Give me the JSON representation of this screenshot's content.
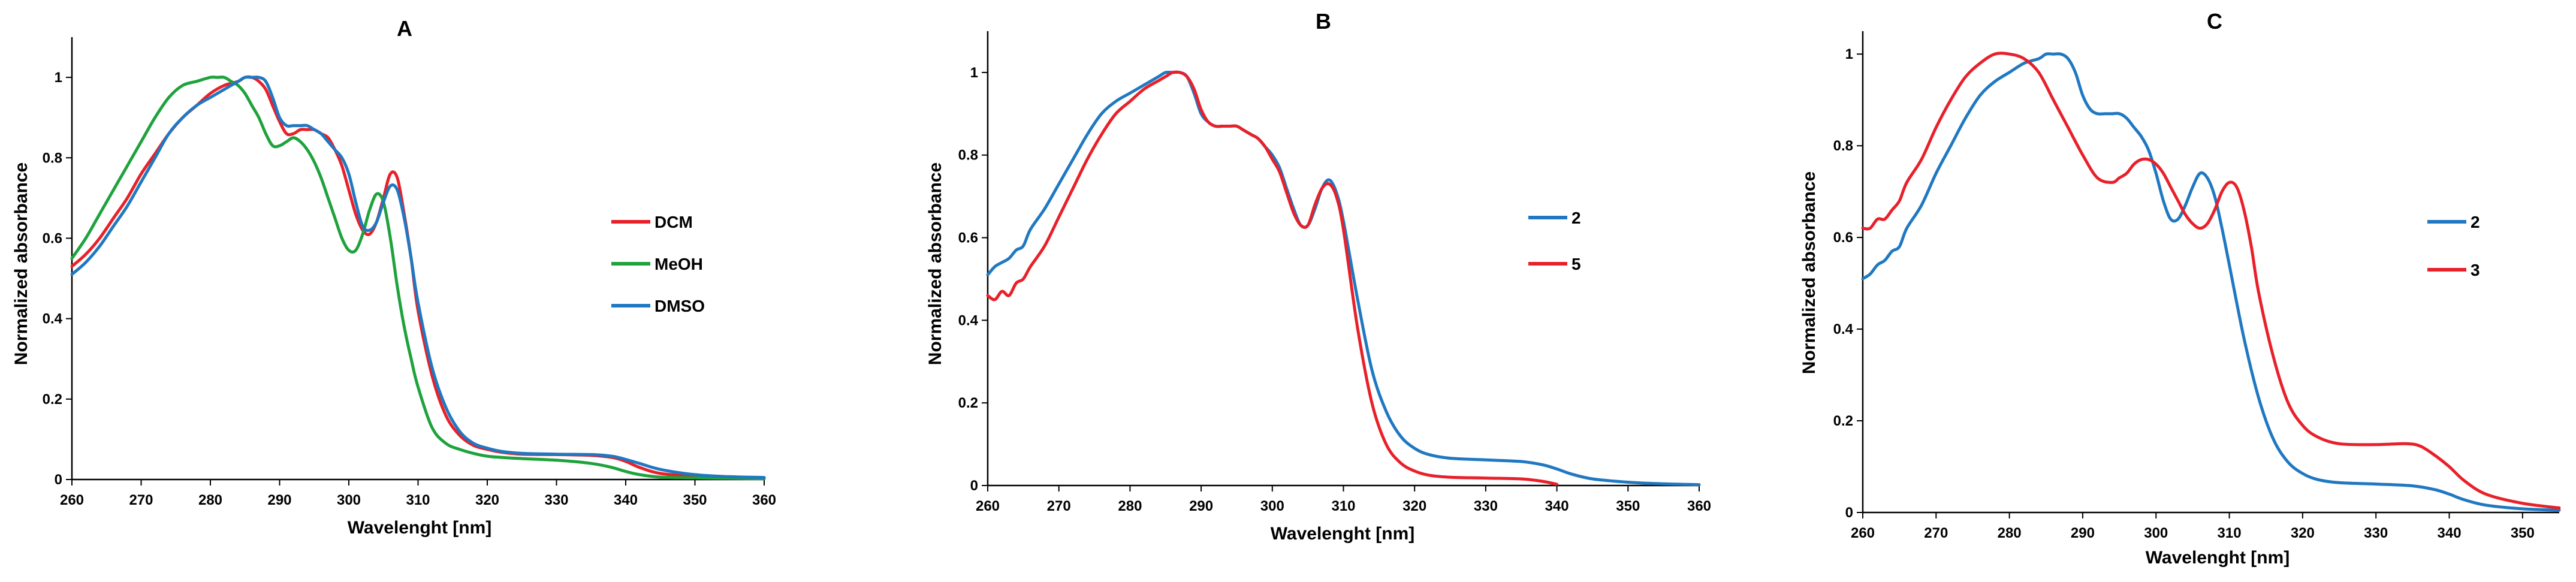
{
  "chart_data": [
    {
      "type": "line",
      "title": "A",
      "xlabel": "Wavelenght [nm]",
      "ylabel": "Normalized absorbance",
      "xlim": [
        260,
        360
      ],
      "ylim": [
        0,
        1.1
      ],
      "xticks": [
        260,
        270,
        280,
        290,
        300,
        310,
        320,
        330,
        340,
        350,
        360
      ],
      "yticks": [
        0,
        0.2,
        0.4,
        0.6,
        0.8,
        1
      ],
      "ytick_labels": [
        "0",
        "0.2",
        "0.4",
        "0.6",
        "0.8",
        "1"
      ],
      "grid": false,
      "legend_position": "right",
      "series": [
        {
          "name": "DCM",
          "color": "#e8202a",
          "x": [
            260,
            262,
            264,
            266,
            268,
            270,
            272,
            274,
            276,
            278,
            280,
            282,
            284,
            285,
            286,
            287,
            288,
            289,
            290,
            291,
            292,
            293,
            294,
            295,
            296,
            297,
            298,
            299,
            300,
            301,
            302,
            303,
            304,
            305,
            306,
            307,
            308,
            309,
            310,
            312,
            314,
            316,
            318,
            320,
            322,
            325,
            330,
            335,
            338,
            340,
            342,
            345,
            350,
            355,
            360
          ],
          "y": [
            0.53,
            0.56,
            0.6,
            0.65,
            0.7,
            0.76,
            0.81,
            0.86,
            0.9,
            0.93,
            0.96,
            0.98,
            0.99,
            1.0,
            1.0,
            0.99,
            0.97,
            0.93,
            0.89,
            0.86,
            0.86,
            0.87,
            0.87,
            0.87,
            0.86,
            0.85,
            0.82,
            0.78,
            0.72,
            0.66,
            0.62,
            0.61,
            0.64,
            0.7,
            0.76,
            0.75,
            0.66,
            0.55,
            0.42,
            0.26,
            0.16,
            0.11,
            0.085,
            0.075,
            0.068,
            0.063,
            0.062,
            0.06,
            0.055,
            0.045,
            0.03,
            0.015,
            0.008,
            0.005,
            0.004
          ]
        },
        {
          "name": "MeOH",
          "color": "#1ea23c",
          "x": [
            260,
            262,
            264,
            266,
            268,
            270,
            272,
            274,
            276,
            278,
            280,
            281,
            282,
            283,
            284,
            285,
            286,
            287,
            288,
            289,
            290,
            291,
            292,
            293,
            294,
            295,
            296,
            297,
            298,
            299,
            300,
            301,
            302,
            303,
            304,
            305,
            306,
            307,
            308,
            309,
            310,
            312,
            314,
            316,
            318,
            320,
            322,
            325,
            330,
            335,
            338,
            340,
            342,
            345,
            350,
            355,
            360
          ],
          "y": [
            0.55,
            0.6,
            0.66,
            0.72,
            0.78,
            0.84,
            0.9,
            0.95,
            0.98,
            0.99,
            1.0,
            1.0,
            1.0,
            0.99,
            0.98,
            0.96,
            0.93,
            0.9,
            0.86,
            0.83,
            0.83,
            0.84,
            0.85,
            0.84,
            0.82,
            0.79,
            0.75,
            0.7,
            0.65,
            0.6,
            0.57,
            0.57,
            0.61,
            0.67,
            0.71,
            0.69,
            0.6,
            0.48,
            0.38,
            0.3,
            0.23,
            0.13,
            0.09,
            0.075,
            0.065,
            0.058,
            0.055,
            0.052,
            0.048,
            0.04,
            0.03,
            0.02,
            0.012,
            0.006,
            0.004,
            0.003,
            0.002
          ]
        },
        {
          "name": "DMSO",
          "color": "#1f78c1",
          "x": [
            260,
            262,
            264,
            266,
            268,
            270,
            272,
            274,
            276,
            278,
            280,
            282,
            284,
            285,
            286,
            287,
            288,
            289,
            290,
            291,
            292,
            293,
            294,
            295,
            296,
            297,
            298,
            299,
            300,
            301,
            302,
            303,
            304,
            305,
            306,
            307,
            308,
            309,
            310,
            312,
            314,
            316,
            318,
            320,
            322,
            325,
            330,
            335,
            338,
            340,
            342,
            345,
            350,
            355,
            360
          ],
          "y": [
            0.51,
            0.54,
            0.58,
            0.63,
            0.68,
            0.74,
            0.8,
            0.86,
            0.9,
            0.93,
            0.95,
            0.97,
            0.99,
            1.0,
            1.0,
            1.0,
            0.99,
            0.95,
            0.9,
            0.88,
            0.88,
            0.88,
            0.88,
            0.87,
            0.86,
            0.84,
            0.82,
            0.8,
            0.76,
            0.69,
            0.63,
            0.62,
            0.64,
            0.69,
            0.73,
            0.72,
            0.65,
            0.55,
            0.44,
            0.28,
            0.18,
            0.12,
            0.09,
            0.078,
            0.07,
            0.065,
            0.063,
            0.062,
            0.058,
            0.05,
            0.04,
            0.025,
            0.012,
            0.007,
            0.005
          ]
        }
      ]
    },
    {
      "type": "line",
      "title": "B",
      "xlabel": "Wavelenght [nm]",
      "ylabel": "Normalized absorbance",
      "xlim": [
        260,
        360
      ],
      "ylim": [
        0,
        1.1
      ],
      "xticks": [
        260,
        270,
        280,
        290,
        300,
        310,
        320,
        330,
        340,
        350,
        360
      ],
      "yticks": [
        0,
        0.2,
        0.4,
        0.6,
        0.8,
        1
      ],
      "ytick_labels": [
        "0",
        "0.2",
        "0.4",
        "0.6",
        "0.8",
        "1"
      ],
      "grid": false,
      "legend_position": "right",
      "series": [
        {
          "name": "2",
          "color": "#1f78c1",
          "x": [
            260,
            261,
            262,
            263,
            264,
            265,
            266,
            268,
            270,
            272,
            274,
            276,
            278,
            280,
            282,
            284,
            285,
            286,
            287,
            288,
            289,
            290,
            291,
            292,
            293,
            294,
            295,
            296,
            297,
            298,
            299,
            300,
            301,
            302,
            303,
            304,
            305,
            306,
            307,
            308,
            309,
            310,
            312,
            314,
            316,
            318,
            320,
            322,
            325,
            330,
            335,
            338,
            340,
            342,
            345,
            350,
            355,
            360
          ],
          "y": [
            0.51,
            0.53,
            0.54,
            0.55,
            0.57,
            0.58,
            0.62,
            0.67,
            0.73,
            0.79,
            0.85,
            0.9,
            0.93,
            0.95,
            0.97,
            0.99,
            1.0,
            1.0,
            1.0,
            0.99,
            0.95,
            0.9,
            0.88,
            0.87,
            0.87,
            0.87,
            0.87,
            0.86,
            0.85,
            0.84,
            0.82,
            0.8,
            0.77,
            0.72,
            0.67,
            0.63,
            0.63,
            0.67,
            0.72,
            0.74,
            0.71,
            0.64,
            0.45,
            0.28,
            0.18,
            0.12,
            0.09,
            0.075,
            0.066,
            0.062,
            0.058,
            0.05,
            0.04,
            0.028,
            0.016,
            0.008,
            0.004,
            0.002
          ]
        },
        {
          "name": "5",
          "color": "#e8202a",
          "x": [
            260,
            261,
            262,
            263,
            264,
            265,
            266,
            268,
            270,
            272,
            274,
            276,
            278,
            280,
            282,
            284,
            285,
            286,
            287,
            288,
            289,
            290,
            291,
            292,
            293,
            294,
            295,
            296,
            297,
            298,
            299,
            300,
            301,
            302,
            303,
            304,
            305,
            306,
            307,
            308,
            309,
            310,
            312,
            314,
            316,
            318,
            320,
            322,
            325,
            330,
            335,
            338,
            340
          ],
          "y": [
            0.46,
            0.45,
            0.47,
            0.46,
            0.49,
            0.5,
            0.53,
            0.58,
            0.65,
            0.72,
            0.79,
            0.85,
            0.9,
            0.93,
            0.96,
            0.98,
            0.99,
            1.0,
            1.0,
            0.99,
            0.96,
            0.91,
            0.88,
            0.87,
            0.87,
            0.87,
            0.87,
            0.86,
            0.85,
            0.84,
            0.82,
            0.79,
            0.76,
            0.71,
            0.66,
            0.63,
            0.63,
            0.68,
            0.72,
            0.73,
            0.7,
            0.62,
            0.38,
            0.2,
            0.1,
            0.055,
            0.035,
            0.025,
            0.02,
            0.018,
            0.016,
            0.01,
            0.003
          ]
        }
      ]
    },
    {
      "type": "line",
      "title": "C",
      "xlabel": "Wavelenght [nm]",
      "ylabel": "Normalized absorbance",
      "xlim": [
        260,
        355
      ],
      "ylim": [
        0,
        1.05
      ],
      "xticks": [
        260,
        270,
        280,
        290,
        300,
        310,
        320,
        330,
        340,
        350
      ],
      "yticks": [
        0,
        0.2,
        0.4,
        0.6,
        0.8,
        1
      ],
      "ytick_labels": [
        "0",
        "0.2",
        "0.4",
        "0.6",
        "0.8",
        "1"
      ],
      "grid": false,
      "legend_position": "right",
      "series": [
        {
          "name": "2",
          "color": "#1f78c1",
          "x": [
            260,
            261,
            262,
            263,
            264,
            265,
            266,
            268,
            270,
            272,
            274,
            276,
            278,
            280,
            282,
            284,
            285,
            286,
            287,
            288,
            289,
            290,
            291,
            292,
            293,
            294,
            295,
            296,
            297,
            298,
            299,
            300,
            301,
            302,
            303,
            304,
            305,
            306,
            307,
            308,
            309,
            310,
            312,
            314,
            316,
            318,
            320,
            322,
            325,
            330,
            335,
            338,
            340,
            342,
            345,
            350,
            355
          ],
          "y": [
            0.51,
            0.52,
            0.54,
            0.55,
            0.57,
            0.58,
            0.62,
            0.67,
            0.74,
            0.8,
            0.86,
            0.91,
            0.94,
            0.96,
            0.98,
            0.99,
            1.0,
            1.0,
            1.0,
            0.99,
            0.96,
            0.91,
            0.88,
            0.87,
            0.87,
            0.87,
            0.87,
            0.86,
            0.84,
            0.82,
            0.79,
            0.74,
            0.68,
            0.64,
            0.64,
            0.67,
            0.71,
            0.74,
            0.73,
            0.69,
            0.62,
            0.54,
            0.38,
            0.25,
            0.16,
            0.11,
            0.085,
            0.072,
            0.065,
            0.062,
            0.058,
            0.05,
            0.04,
            0.028,
            0.016,
            0.008,
            0.005
          ]
        },
        {
          "name": "3",
          "color": "#e8202a",
          "x": [
            260,
            261,
            262,
            263,
            264,
            265,
            266,
            268,
            270,
            272,
            274,
            276,
            278,
            280,
            282,
            284,
            286,
            288,
            290,
            292,
            294,
            295,
            296,
            297,
            298,
            299,
            300,
            301,
            302,
            303,
            304,
            305,
            306,
            307,
            308,
            309,
            310,
            311,
            312,
            313,
            314,
            316,
            318,
            320,
            322,
            325,
            330,
            334,
            336,
            338,
            340,
            342,
            345,
            350,
            355
          ],
          "y": [
            0.62,
            0.62,
            0.64,
            0.64,
            0.66,
            0.68,
            0.72,
            0.77,
            0.84,
            0.9,
            0.95,
            0.98,
            1.0,
            1.0,
            0.99,
            0.96,
            0.9,
            0.84,
            0.78,
            0.73,
            0.72,
            0.73,
            0.74,
            0.76,
            0.77,
            0.77,
            0.76,
            0.74,
            0.71,
            0.68,
            0.65,
            0.63,
            0.62,
            0.63,
            0.66,
            0.7,
            0.72,
            0.71,
            0.66,
            0.58,
            0.48,
            0.34,
            0.24,
            0.19,
            0.165,
            0.15,
            0.148,
            0.15,
            0.145,
            0.125,
            0.1,
            0.07,
            0.04,
            0.02,
            0.01
          ]
        }
      ]
    }
  ]
}
